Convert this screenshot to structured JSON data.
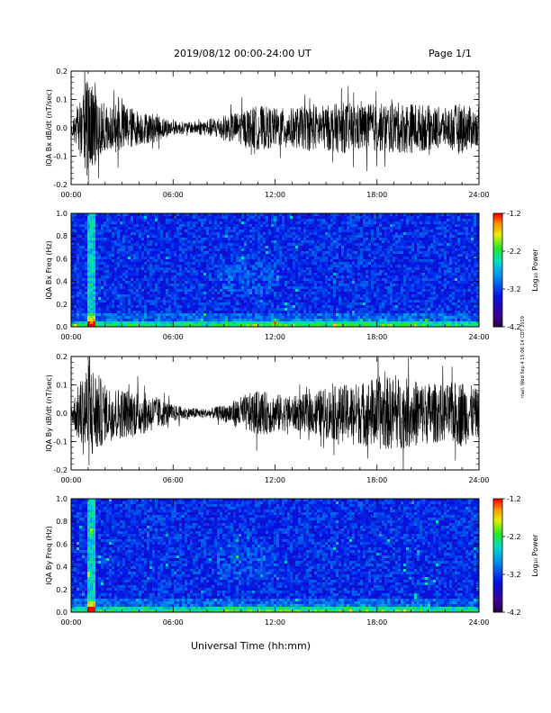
{
  "header": {
    "title": "2019/08/12  00:00-24:00 UT",
    "page": "Page 1/1"
  },
  "xaxis_label": "Universal Time (hh:mm)",
  "side_note": "mail. Wed Sep 4 15:06:14 CDT 2019",
  "chart_data": [
    {
      "type": "line",
      "ylabel": "IQA Bx dB/dt (nT/sec)",
      "xlim": [
        0,
        24
      ],
      "ylim": [
        -0.2,
        0.2
      ],
      "x_ticks": [
        "00:00",
        "06:00",
        "12:00",
        "18:00",
        "24:00"
      ],
      "y_ticks": [
        "0.2",
        "0.1",
        "0.0",
        "-0.1",
        "-0.2"
      ],
      "envelope_hours": [
        0,
        1,
        2,
        3,
        4,
        5,
        6,
        7,
        8,
        9,
        10,
        11,
        12,
        13,
        14,
        15,
        16,
        17,
        18,
        19,
        20,
        21,
        22,
        23,
        24
      ],
      "envelope_amplitude": [
        0.02,
        0.18,
        0.08,
        0.09,
        0.06,
        0.05,
        0.025,
        0.02,
        0.03,
        0.045,
        0.06,
        0.08,
        0.07,
        0.07,
        0.08,
        0.08,
        0.09,
        0.085,
        0.085,
        0.09,
        0.09,
        0.08,
        0.07,
        0.09,
        0.06
      ]
    },
    {
      "type": "heatmap",
      "ylabel": "IQA Bx Freq (Hz)",
      "xlim": [
        0,
        24
      ],
      "ylim": [
        0.0,
        1.0
      ],
      "x_ticks": [
        "00:00",
        "06:00",
        "12:00",
        "18:00",
        "24:00"
      ],
      "y_ticks": [
        "1.0",
        "0.8",
        "0.6",
        "0.4",
        "0.2",
        "0.0"
      ],
      "colorbar": {
        "label": "Log₁₀ Power",
        "range": [
          -4.2,
          -1.2
        ],
        "ticks": [
          "-1.2",
          "-2.2",
          "-3.2",
          "-4.2"
        ]
      }
    },
    {
      "type": "line",
      "ylabel": "IQA By dB/dt (nT/sec)",
      "xlim": [
        0,
        24
      ],
      "ylim": [
        -0.2,
        0.2
      ],
      "x_ticks": [
        "00:00",
        "06:00",
        "12:00",
        "18:00",
        "24:00"
      ],
      "y_ticks": [
        "0.2",
        "0.1",
        "0.0",
        "-0.1",
        "-0.2"
      ],
      "envelope_hours": [
        0,
        1,
        2,
        3,
        4,
        5,
        6,
        7,
        8,
        9,
        10,
        11,
        12,
        13,
        14,
        15,
        16,
        17,
        18,
        19,
        20,
        21,
        22,
        23,
        24
      ],
      "envelope_amplitude": [
        0.03,
        0.2,
        0.1,
        0.09,
        0.08,
        0.06,
        0.03,
        0.02,
        0.015,
        0.03,
        0.06,
        0.08,
        0.07,
        0.06,
        0.07,
        0.09,
        0.1,
        0.11,
        0.13,
        0.13,
        0.12,
        0.11,
        0.1,
        0.12,
        0.08
      ]
    },
    {
      "type": "heatmap",
      "ylabel": "IQA By Freq (Hz)",
      "xlim": [
        0,
        24
      ],
      "ylim": [
        0.0,
        1.0
      ],
      "x_ticks": [
        "00:00",
        "06:00",
        "12:00",
        "18:00",
        "24:00"
      ],
      "y_ticks": [
        "1.0",
        "0.8",
        "0.6",
        "0.4",
        "0.2",
        "0.0"
      ],
      "colorbar": {
        "label": "Log₁₀ Power",
        "range": [
          -4.2,
          -1.2
        ],
        "ticks": [
          "-1.2",
          "-2.2",
          "-3.2",
          "-4.2"
        ]
      }
    }
  ]
}
